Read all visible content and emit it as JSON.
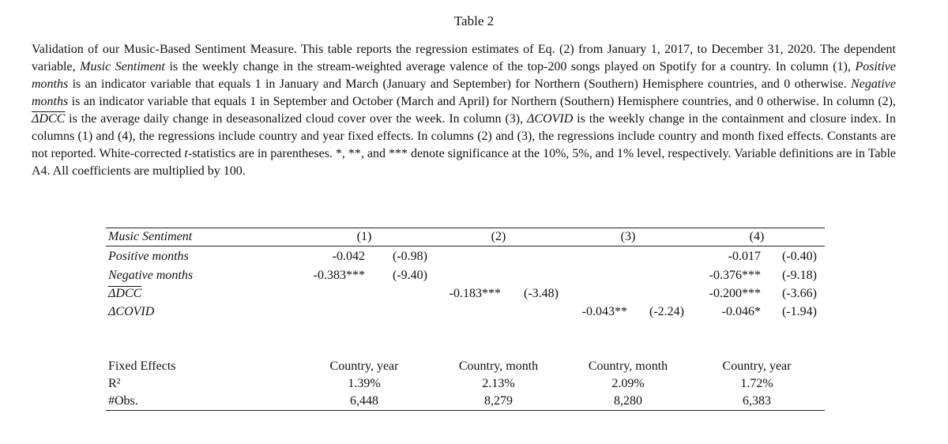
{
  "table_title": "Table 2",
  "caption": {
    "p1": "Validation of our Music-Based Sentiment Measure. This table reports the regression estimates of Eq. (2) from January 1, 2017, to December 31, 2020. The dependent variable, ",
    "music_sentiment": "Music Sentiment",
    "p2": " is the weekly change in the stream-weighted average valence of the top-200 songs played on Spotify for a country. In column (1), ",
    "positive_months": "Positive months",
    "p3": " is an indicator variable that equals 1 in January and March (January and September) for Northern (Southern) Hemisphere countries, and 0 otherwise. ",
    "negative_months": "Negative months",
    "p4": " is an indicator variable that equals 1 in September and October (March and April) for Northern (Southern) Hemisphere countries, and 0 otherwise. In column (2), ",
    "delta_dcc": "ΔDCC",
    "p5": " is the average daily change in deseasonalized cloud cover over the week. In column (3), ",
    "delta_covid": "ΔCOVID",
    "p6": " is the weekly change in the containment and closure index. In columns (1) and (4), the regressions include country and year fixed effects. In columns (2) and (3), the regressions include country and month fixed effects. Constants are not reported. White-corrected ",
    "t_stat": "t",
    "p7": "-statistics are in parentheses. *, **, and *** denote significance at the 10%, 5%, and 1% level, respectively. Variable definitions are in Table A4. All coefficients are multiplied by 100."
  },
  "table": {
    "dependent_label": "Music Sentiment",
    "columns": [
      "(1)",
      "(2)",
      "(3)",
      "(4)"
    ],
    "rows": [
      {
        "label": "Positive months",
        "c1_coef": "-0.042",
        "c1_t": "(-0.98)",
        "c4_coef": "-0.017",
        "c4_t": "(-0.40)"
      },
      {
        "label": "Negative months",
        "c1_coef": "-0.383***",
        "c1_t": "(-9.40)",
        "c4_coef": "-0.376***",
        "c4_t": "(-9.18)"
      },
      {
        "label": "ΔDCC",
        "c2_coef": "-0.183***",
        "c2_t": "(-3.48)",
        "c4_coef": "-0.200***",
        "c4_t": "(-3.66)"
      },
      {
        "label": "ΔCOVID",
        "c3_coef": "-0.043**",
        "c3_t": "(-2.24)",
        "c4_coef": "-0.046*",
        "c4_t": "(-1.94)"
      }
    ],
    "footer": [
      {
        "label": "Fixed Effects",
        "values": [
          "Country, year",
          "Country, month",
          "Country, month",
          "Country, year"
        ]
      },
      {
        "label": "R²",
        "values": [
          "1.39%",
          "2.13%",
          "2.09%",
          "1.72%"
        ]
      },
      {
        "label": "#Obs.",
        "values": [
          "6,448",
          "8,279",
          "8,280",
          "6,383"
        ]
      }
    ]
  }
}
